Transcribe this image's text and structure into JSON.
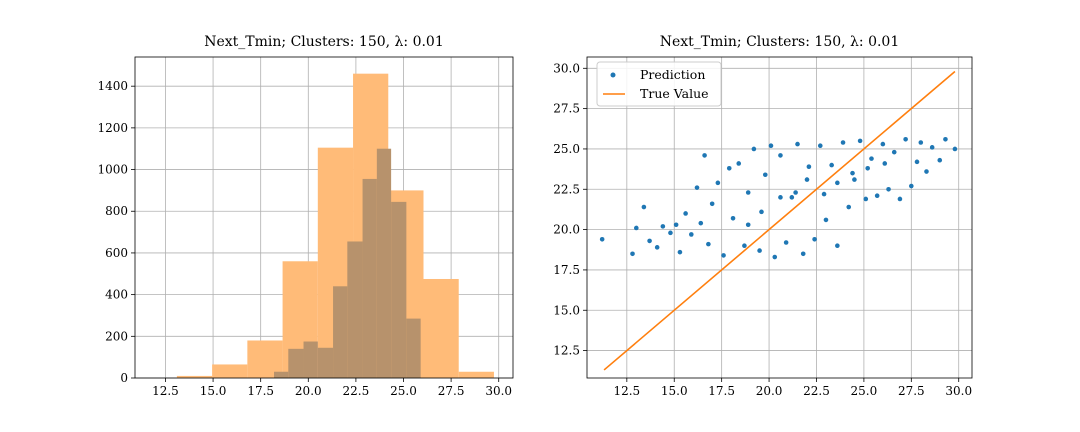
{
  "chart_data": [
    {
      "type": "histogram",
      "title": "Next_Tmin; Clusters: 150, λ: 0.01",
      "xlabel": "",
      "ylabel": "",
      "xlim": [
        10.9,
        30.75
      ],
      "ylim": [
        0,
        1540
      ],
      "x_ticks": [
        12.5,
        15.0,
        17.5,
        20.0,
        22.5,
        25.0,
        27.5,
        30.0
      ],
      "x_tick_labels": [
        "12.5",
        "15.0",
        "17.5",
        "20.0",
        "22.5",
        "25.0",
        "27.5",
        "30.0"
      ],
      "y_ticks": [
        0,
        200,
        400,
        600,
        800,
        1000,
        1200,
        1400
      ],
      "y_tick_labels": [
        "0",
        "200",
        "400",
        "600",
        "800",
        "1000",
        "1200",
        "1400"
      ],
      "grid": true,
      "series": [
        {
          "color": "#ffbb78",
          "bins": [
            {
              "x0": 13.1,
              "x1": 14.95,
              "count": 10
            },
            {
              "x0": 14.95,
              "x1": 16.8,
              "count": 65
            },
            {
              "x0": 16.8,
              "x1": 18.65,
              "count": 180
            },
            {
              "x0": 18.65,
              "x1": 20.5,
              "count": 560
            },
            {
              "x0": 20.5,
              "x1": 22.35,
              "count": 1105
            },
            {
              "x0": 22.35,
              "x1": 24.2,
              "count": 1460
            },
            {
              "x0": 24.2,
              "x1": 26.05,
              "count": 900
            },
            {
              "x0": 26.05,
              "x1": 27.9,
              "count": 475
            },
            {
              "x0": 27.9,
              "x1": 29.75,
              "count": 30
            }
          ]
        },
        {
          "color": "#b7926c",
          "bins": [
            {
              "x0": 18.2,
              "x1": 18.95,
              "count": 30
            },
            {
              "x0": 18.95,
              "x1": 19.75,
              "count": 140
            },
            {
              "x0": 19.75,
              "x1": 20.5,
              "count": 175
            },
            {
              "x0": 20.5,
              "x1": 21.3,
              "count": 145
            },
            {
              "x0": 21.3,
              "x1": 22.05,
              "count": 440
            },
            {
              "x0": 22.05,
              "x1": 22.85,
              "count": 655
            },
            {
              "x0": 22.85,
              "x1": 23.6,
              "count": 955
            },
            {
              "x0": 23.6,
              "x1": 24.35,
              "count": 1100
            },
            {
              "x0": 24.35,
              "x1": 25.15,
              "count": 845
            },
            {
              "x0": 25.15,
              "x1": 25.9,
              "count": 285
            }
          ]
        }
      ]
    },
    {
      "type": "scatter",
      "title": "Next_Tmin; Clusters: 150, λ: 0.01",
      "xlabel": "",
      "ylabel": "",
      "xlim": [
        10.4,
        30.7
      ],
      "ylim": [
        10.8,
        30.7
      ],
      "x_ticks": [
        12.5,
        15.0,
        17.5,
        20.0,
        22.5,
        25.0,
        27.5,
        30.0
      ],
      "x_tick_labels": [
        "12.5",
        "15.0",
        "17.5",
        "20.0",
        "22.5",
        "25.0",
        "27.5",
        "30.0"
      ],
      "y_ticks": [
        12.5,
        15.0,
        17.5,
        20.0,
        22.5,
        25.0,
        27.5,
        30.0
      ],
      "y_tick_labels": [
        "12.5",
        "15.0",
        "17.5",
        "20.0",
        "22.5",
        "25.0",
        "27.5",
        "30.0"
      ],
      "grid": true,
      "legend_position": "top-left",
      "series": [
        {
          "name": "Prediction",
          "kind": "scatter",
          "color": "#1f77b4",
          "points": [
            [
              11.2,
              19.4
            ],
            [
              12.8,
              18.5
            ],
            [
              13.0,
              20.1
            ],
            [
              13.4,
              21.4
            ],
            [
              13.7,
              19.3
            ],
            [
              14.1,
              18.9
            ],
            [
              14.4,
              20.2
            ],
            [
              14.8,
              19.8
            ],
            [
              15.1,
              20.3
            ],
            [
              15.3,
              18.6
            ],
            [
              15.6,
              21.0
            ],
            [
              15.9,
              19.7
            ],
            [
              16.2,
              22.6
            ],
            [
              16.4,
              20.4
            ],
            [
              16.6,
              24.6
            ],
            [
              16.8,
              19.1
            ],
            [
              17.0,
              21.6
            ],
            [
              17.3,
              22.9
            ],
            [
              17.6,
              18.4
            ],
            [
              17.9,
              23.8
            ],
            [
              18.1,
              20.7
            ],
            [
              18.4,
              24.1
            ],
            [
              18.7,
              19.0
            ],
            [
              18.9,
              22.3
            ],
            [
              19.2,
              25.0
            ],
            [
              19.5,
              18.7
            ],
            [
              19.8,
              23.4
            ],
            [
              20.1,
              25.2
            ],
            [
              20.3,
              18.3
            ],
            [
              20.6,
              24.6
            ],
            [
              20.9,
              19.2
            ],
            [
              21.2,
              22.0
            ],
            [
              21.5,
              25.3
            ],
            [
              21.8,
              18.5
            ],
            [
              22.1,
              23.9
            ],
            [
              22.4,
              19.4
            ],
            [
              22.7,
              25.2
            ],
            [
              23.0,
              20.6
            ],
            [
              23.3,
              24.0
            ],
            [
              23.6,
              19.0
            ],
            [
              23.9,
              25.4
            ],
            [
              24.2,
              21.4
            ],
            [
              24.5,
              23.1
            ],
            [
              24.8,
              25.5
            ],
            [
              25.1,
              21.9
            ],
            [
              25.4,
              24.4
            ],
            [
              25.7,
              22.1
            ],
            [
              26.0,
              25.3
            ],
            [
              26.3,
              22.5
            ],
            [
              26.6,
              24.8
            ],
            [
              26.9,
              21.9
            ],
            [
              27.2,
              25.6
            ],
            [
              27.5,
              22.7
            ],
            [
              27.8,
              24.2
            ],
            [
              28.0,
              25.4
            ],
            [
              28.3,
              23.6
            ],
            [
              28.6,
              25.1
            ],
            [
              29.0,
              24.3
            ],
            [
              29.3,
              25.6
            ],
            [
              29.8,
              25.0
            ],
            [
              22.9,
              22.2
            ],
            [
              23.6,
              22.9
            ],
            [
              24.4,
              23.5
            ],
            [
              25.2,
              23.8
            ],
            [
              26.1,
              24.1
            ],
            [
              21.4,
              22.3
            ],
            [
              20.6,
              22.0
            ],
            [
              19.6,
              21.1
            ],
            [
              18.9,
              20.3
            ],
            [
              22.0,
              23.1
            ]
          ]
        },
        {
          "name": "True Value",
          "kind": "line",
          "color": "#ff7f0e",
          "points": [
            [
              11.3,
              11.3
            ],
            [
              29.8,
              29.8
            ]
          ]
        }
      ]
    }
  ]
}
